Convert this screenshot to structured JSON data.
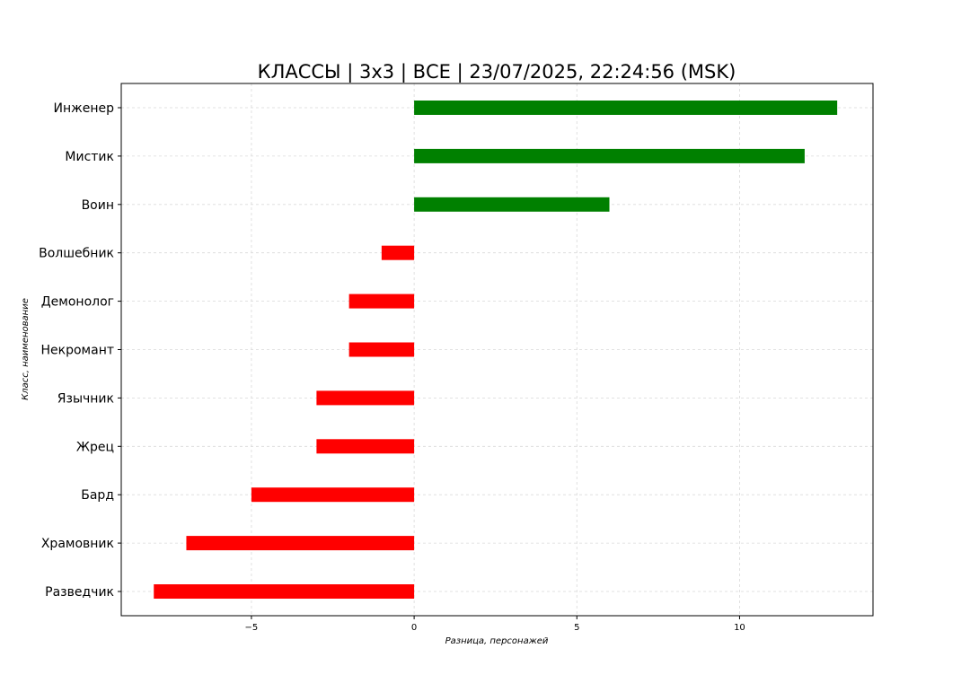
{
  "chart_data": {
    "type": "bar",
    "orientation": "horizontal",
    "title": "КЛАССЫ | 3х3 | ВСЕ | 23/07/2025, 22:24:56 (MSK)",
    "xlabel": "Разница, персонажей",
    "ylabel": "Класс, наименование",
    "categories": [
      "Инженер",
      "Мистик",
      "Воин",
      "Волшебник",
      "Демонолог",
      "Некромант",
      "Язычник",
      "Жрец",
      "Бард",
      "Храмовник",
      "Разведчик"
    ],
    "values": [
      13,
      12,
      6,
      -1,
      -2,
      -2,
      -3,
      -3,
      -5,
      -7,
      -8
    ],
    "xlim": [
      -9,
      14.1
    ],
    "xticks": [
      -5,
      0,
      5,
      10
    ],
    "xtick_labels": [
      "−5",
      "0",
      "5",
      "10"
    ],
    "grid": true,
    "colors": {
      "positive": "#008000",
      "negative": "#ff0000",
      "grid": "#d9d9d9"
    }
  }
}
